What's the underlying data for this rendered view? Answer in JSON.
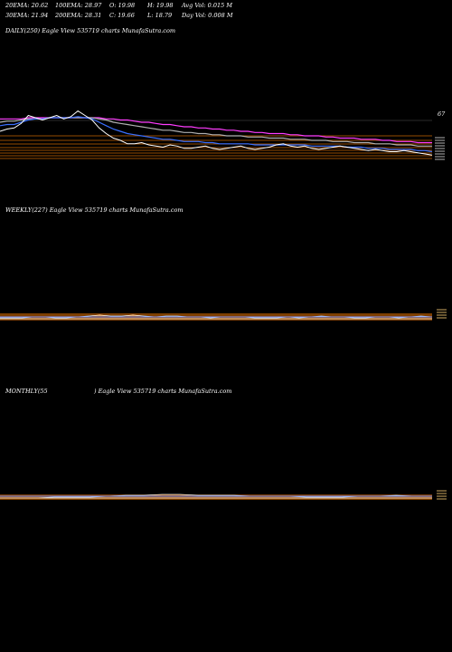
{
  "header": {
    "row1": [
      {
        "key": "ema20",
        "text": "20EMA: 20.62"
      },
      {
        "key": "ema100",
        "text": "100EMA: 28.97"
      },
      {
        "key": "open",
        "text": "O: 19.98"
      },
      {
        "key": "high",
        "text": "H: 19.98"
      },
      {
        "key": "avgvol",
        "text": "Avg Vol: 0.015 M"
      }
    ],
    "row2": [
      {
        "key": "ema30",
        "text": "30EMA: 21.94"
      },
      {
        "key": "ema200",
        "text": "200EMA: 28.31"
      },
      {
        "key": "close",
        "text": "C: 19.66"
      },
      {
        "key": "low",
        "text": "L: 18.79"
      },
      {
        "key": "dayvol",
        "text": "Day Vol: 0.008 M"
      }
    ]
  },
  "panels": {
    "daily": {
      "label": "DAILY(250) Eagle   View  535719 charts MunafaSutra.com",
      "price_label": "67"
    },
    "weekly": {
      "label": "WEEKLY(227) Eagle   View  535719 charts MunafaSutra.com"
    },
    "monthly": {
      "label_left": "MONTHLY(55",
      "label_right": ") Eagle   View  535719 charts MunafaSutra.com"
    }
  },
  "colors": {
    "price": "#ffffff",
    "ema_blue": "#3a6fff",
    "ema_magenta": "#ff3cff",
    "ema_orange": "#ff8c1a",
    "ema_gray": "#b0b0b0",
    "grid_orange": "#c86400"
  },
  "chart_data": [
    {
      "type": "line",
      "timeframe": "daily",
      "series": [
        {
          "values": [
            44,
            46,
            47,
            51,
            58,
            56,
            54,
            56,
            58,
            55,
            57,
            62,
            58,
            54,
            47,
            42,
            38,
            36,
            33,
            33,
            34,
            32,
            31,
            30,
            32,
            31,
            29,
            29,
            30,
            31,
            29,
            28,
            29,
            30,
            31,
            29,
            28,
            29,
            30,
            32,
            33,
            31,
            30,
            31,
            29,
            28,
            29,
            30,
            31,
            30,
            29,
            28,
            27,
            28,
            27,
            26,
            26,
            27,
            26,
            25,
            24,
            23
          ]
        },
        {
          "values": [
            49,
            50,
            50,
            52,
            54,
            55,
            55,
            56,
            56,
            56,
            56,
            57,
            56,
            55,
            52,
            49,
            46,
            44,
            42,
            41,
            40,
            39,
            38,
            37,
            37,
            36,
            35,
            35,
            35,
            34,
            34,
            33,
            33,
            33,
            33,
            33,
            32,
            32,
            32,
            32,
            32,
            32,
            32,
            32,
            31,
            31,
            31,
            31,
            31,
            30,
            30,
            30,
            29,
            29,
            29,
            28,
            28,
            28,
            28,
            27,
            27,
            26
          ]
        },
        {
          "values": [
            52,
            53,
            53,
            54,
            55,
            55,
            55,
            56,
            56,
            56,
            56,
            56,
            56,
            56,
            55,
            54,
            52,
            51,
            50,
            49,
            48,
            47,
            46,
            45,
            45,
            44,
            43,
            43,
            42,
            42,
            41,
            41,
            40,
            40,
            40,
            39,
            39,
            39,
            38,
            38,
            38,
            37,
            37,
            37,
            36,
            36,
            36,
            35,
            35,
            35,
            34,
            34,
            34,
            33,
            33,
            33,
            32,
            32,
            32,
            31,
            31,
            31
          ]
        },
        {
          "values": [
            55,
            55,
            55,
            55,
            56,
            56,
            56,
            56,
            56,
            56,
            56,
            56,
            56,
            56,
            56,
            55,
            55,
            54,
            54,
            53,
            52,
            52,
            51,
            50,
            50,
            49,
            48,
            48,
            47,
            47,
            46,
            46,
            45,
            45,
            44,
            44,
            43,
            43,
            42,
            42,
            42,
            41,
            41,
            40,
            40,
            40,
            39,
            39,
            38,
            38,
            38,
            37,
            37,
            37,
            36,
            36,
            35,
            35,
            35,
            34,
            34,
            34
          ]
        }
      ]
    },
    {
      "type": "line",
      "timeframe": "weekly",
      "series": [
        {
          "values": [
            20,
            20,
            20,
            21,
            21,
            20,
            20,
            21,
            22,
            23,
            22,
            22,
            23,
            22,
            21,
            22,
            22,
            21,
            21,
            20,
            21,
            21,
            21,
            20,
            20,
            20,
            21,
            20,
            21,
            22,
            21,
            21,
            20,
            20,
            21,
            21,
            20,
            21,
            22,
            21
          ]
        }
      ]
    },
    {
      "type": "line",
      "timeframe": "monthly",
      "series": [
        {
          "values": [
            20,
            20,
            20,
            21,
            21,
            21,
            22,
            23,
            23,
            24,
            24,
            23,
            23,
            23,
            22,
            22,
            22,
            21,
            21,
            21,
            22,
            22,
            23,
            22,
            22
          ]
        }
      ]
    }
  ]
}
